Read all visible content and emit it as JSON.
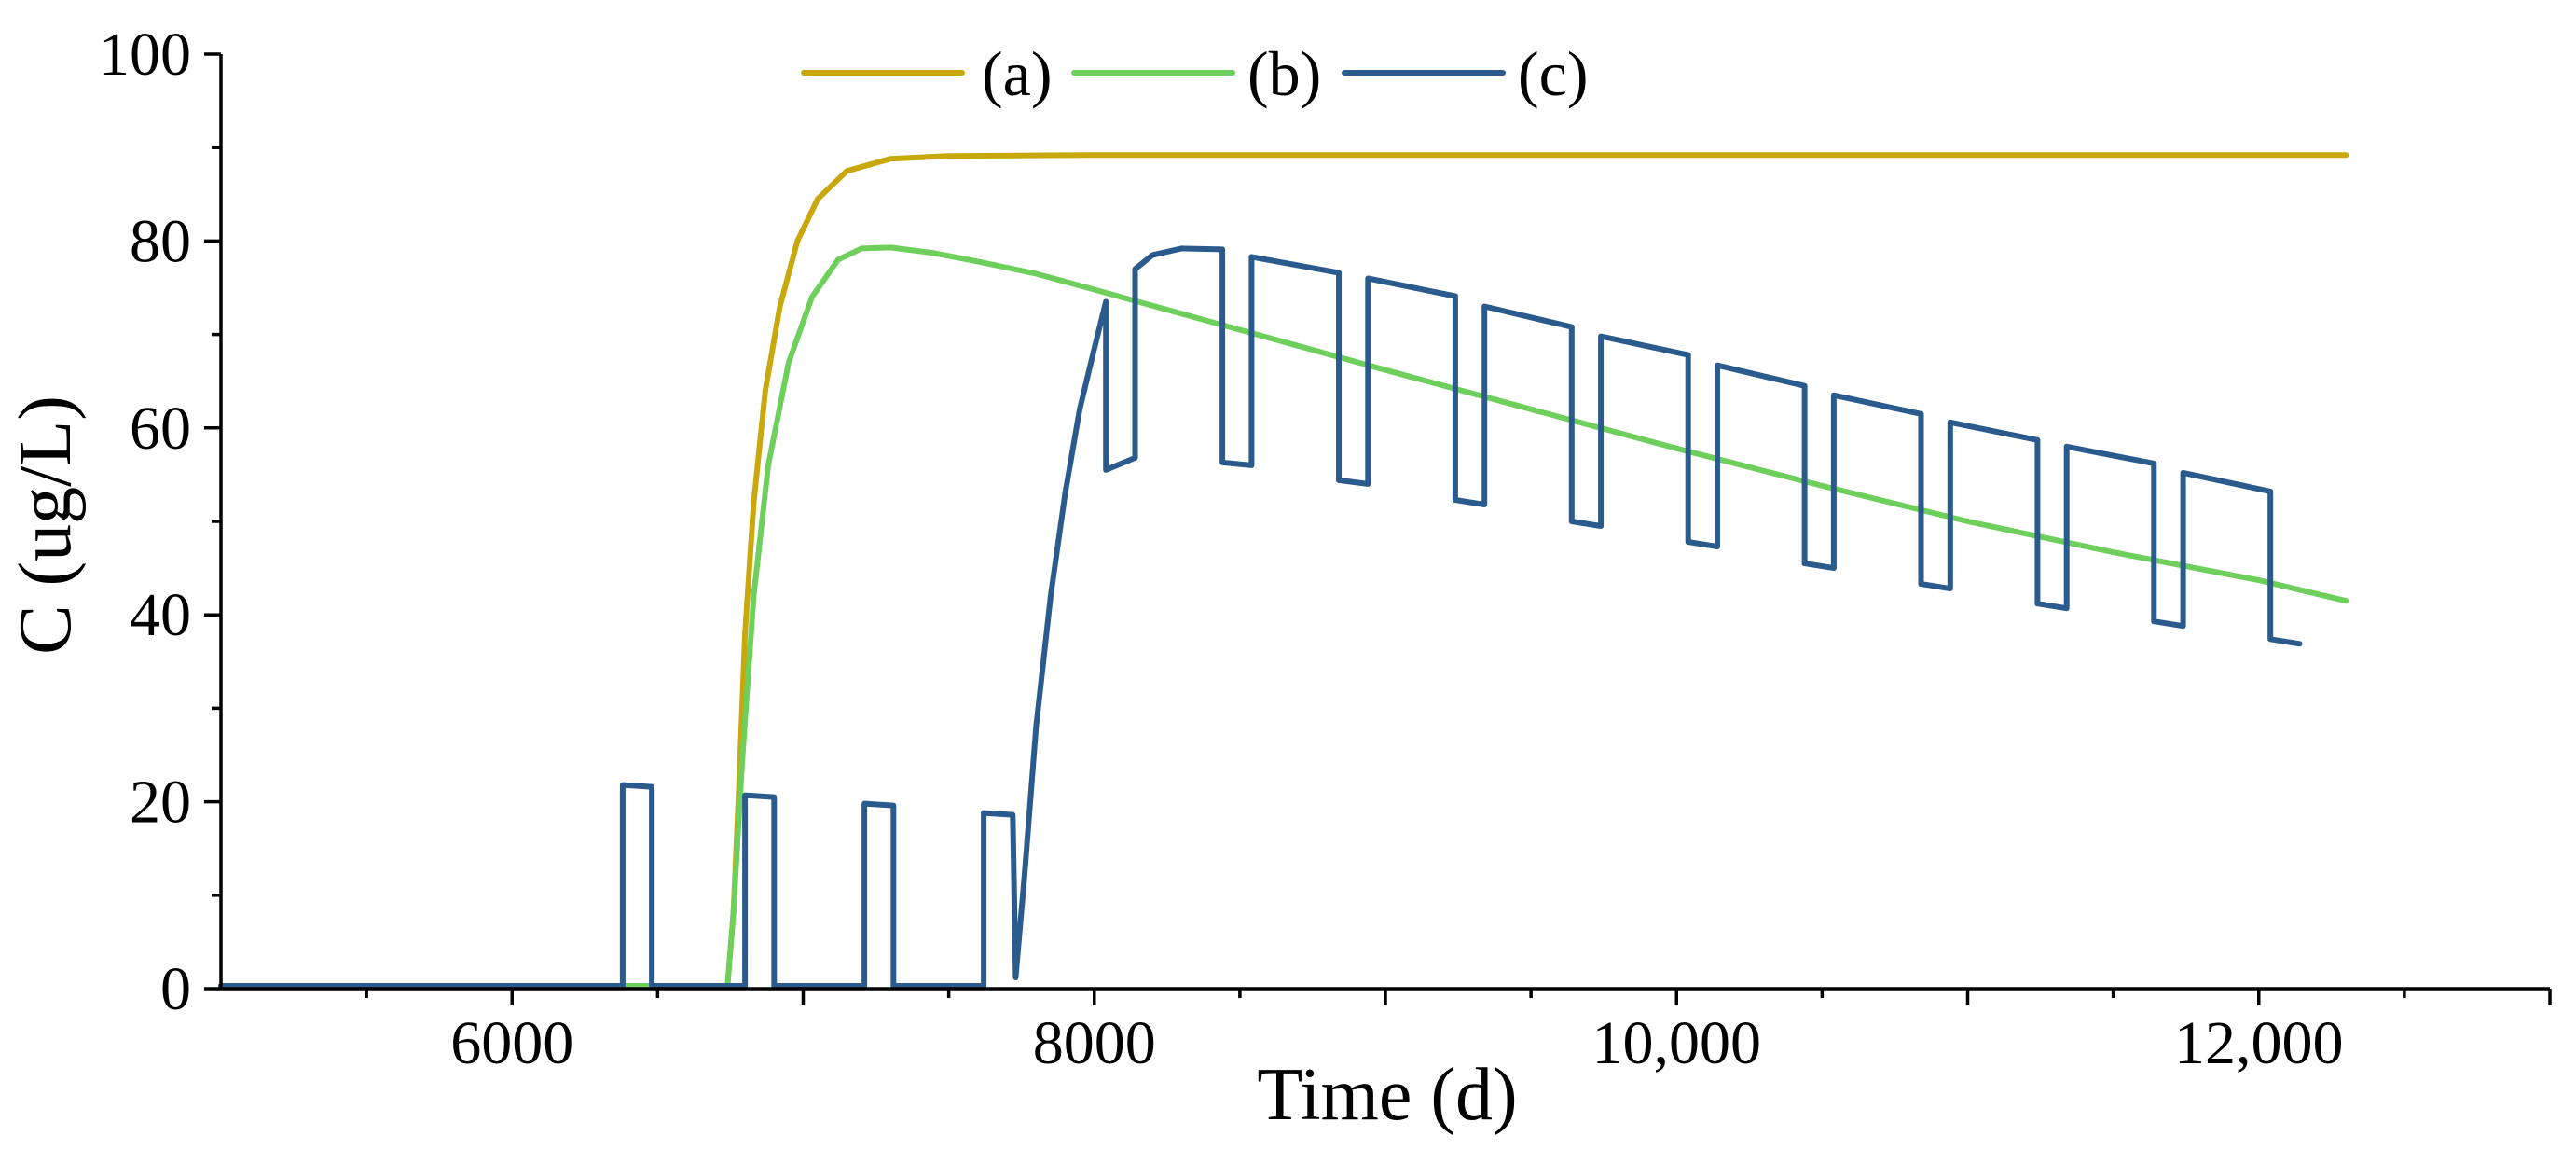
{
  "chart_data": {
    "type": "line",
    "title": "",
    "xlabel": "Time (d)",
    "ylabel": "C (ug/L)",
    "xlim": [
      5000,
      13000
    ],
    "ylim": [
      0,
      100
    ],
    "x_ticks": [
      6000,
      8000,
      10000,
      12000
    ],
    "x_tick_labels": [
      "6000",
      "8000",
      "10,000",
      "12,000"
    ],
    "y_ticks": [
      0,
      20,
      40,
      60,
      80,
      100
    ],
    "y_tick_labels": [
      "0",
      "20",
      "40",
      "60",
      "80",
      "100"
    ],
    "grid": false,
    "legend_position": "top-center",
    "series": [
      {
        "name": "(a)",
        "color": "#C9A80E",
        "points": [
          [
            5000,
            0.3
          ],
          [
            6740,
            0.3
          ],
          [
            6760,
            8
          ],
          [
            6780,
            22
          ],
          [
            6800,
            38
          ],
          [
            6830,
            52
          ],
          [
            6870,
            64
          ],
          [
            6920,
            73
          ],
          [
            6980,
            80
          ],
          [
            7050,
            84.5
          ],
          [
            7150,
            87.5
          ],
          [
            7300,
            88.8
          ],
          [
            7500,
            89.1
          ],
          [
            8000,
            89.2
          ],
          [
            12300,
            89.2
          ]
        ]
      },
      {
        "name": "(b)",
        "color": "#6FCF5C",
        "points": [
          [
            5000,
            0.3
          ],
          [
            6740,
            0.3
          ],
          [
            6760,
            8
          ],
          [
            6790,
            24
          ],
          [
            6830,
            42
          ],
          [
            6880,
            56
          ],
          [
            6950,
            67
          ],
          [
            7030,
            74
          ],
          [
            7120,
            78
          ],
          [
            7200,
            79.2
          ],
          [
            7300,
            79.3
          ],
          [
            7450,
            78.7
          ],
          [
            7600,
            77.8
          ],
          [
            7800,
            76.5
          ],
          [
            8000,
            74.8
          ],
          [
            8500,
            70.5
          ],
          [
            9000,
            66.2
          ],
          [
            9500,
            62
          ],
          [
            10000,
            57.8
          ],
          [
            10500,
            53.8
          ],
          [
            11000,
            50
          ],
          [
            11500,
            46.7
          ],
          [
            12000,
            43.7
          ],
          [
            12300,
            41.5
          ]
        ]
      },
      {
        "name": "(c)",
        "color": "#2A5B8C",
        "points": [
          [
            5000,
            0.3
          ],
          [
            6380,
            0.3
          ],
          [
            6380,
            21.8
          ],
          [
            6480,
            21.6
          ],
          [
            6480,
            0.3
          ],
          [
            6800,
            0.3
          ],
          [
            6800,
            20.7
          ],
          [
            6900,
            20.5
          ],
          [
            6900,
            0.3
          ],
          [
            7210,
            0.3
          ],
          [
            7210,
            19.8
          ],
          [
            7310,
            19.6
          ],
          [
            7310,
            0.3
          ],
          [
            7620,
            0.3
          ],
          [
            7620,
            18.8
          ],
          [
            7720,
            18.6
          ],
          [
            7730,
            1.2
          ],
          [
            7760,
            12
          ],
          [
            7800,
            28
          ],
          [
            7850,
            42
          ],
          [
            7900,
            53
          ],
          [
            7950,
            62
          ],
          [
            8000,
            68.5
          ],
          [
            8040,
            73.5
          ],
          [
            8040,
            55.5
          ],
          [
            8140,
            56.8
          ],
          [
            8140,
            77
          ],
          [
            8200,
            78.5
          ],
          [
            8300,
            79.2
          ],
          [
            8440,
            79.1
          ],
          [
            8440,
            56.3
          ],
          [
            8540,
            56
          ],
          [
            8540,
            78.3
          ],
          [
            8840,
            76.6
          ],
          [
            8840,
            54.4
          ],
          [
            8940,
            54
          ],
          [
            8940,
            76
          ],
          [
            9240,
            74.1
          ],
          [
            9240,
            52.3
          ],
          [
            9340,
            51.8
          ],
          [
            9340,
            73
          ],
          [
            9640,
            70.8
          ],
          [
            9640,
            50
          ],
          [
            9740,
            49.5
          ],
          [
            9740,
            69.8
          ],
          [
            10040,
            67.8
          ],
          [
            10040,
            47.8
          ],
          [
            10140,
            47.3
          ],
          [
            10140,
            66.7
          ],
          [
            10440,
            64.5
          ],
          [
            10440,
            45.5
          ],
          [
            10540,
            45
          ],
          [
            10540,
            63.5
          ],
          [
            10840,
            61.5
          ],
          [
            10840,
            43.3
          ],
          [
            10940,
            42.8
          ],
          [
            10940,
            60.6
          ],
          [
            11240,
            58.7
          ],
          [
            11240,
            41.2
          ],
          [
            11340,
            40.7
          ],
          [
            11340,
            58
          ],
          [
            11640,
            56.2
          ],
          [
            11640,
            39.3
          ],
          [
            11740,
            38.8
          ],
          [
            11740,
            55.2
          ],
          [
            12040,
            53.2
          ],
          [
            12040,
            37.4
          ],
          [
            12140,
            36.9
          ]
        ]
      }
    ]
  }
}
